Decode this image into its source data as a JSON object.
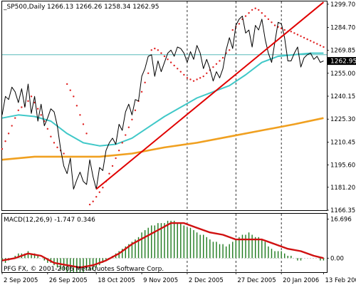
{
  "chart_data": [
    {
      "type": "line",
      "panel": "price",
      "header": {
        "symbol_label": "_SP500,Daily",
        "ohlc_label": "1266.13 1266.26 1258.34 1262.95"
      },
      "ylim": [
        1166.35,
        1301.5
      ],
      "y_ticks": [
        "1299.70",
        "1284.70",
        "1269.85",
        "1255.00",
        "1240.15",
        "1225.30",
        "1210.45",
        "1195.60",
        "1181.20",
        "1166.35"
      ],
      "current_price_label": "1262.95",
      "colors": {
        "price": "#000000",
        "ma_fast": "#40c8c8",
        "ma_slow": "#f0a020",
        "sar": "#e02020",
        "trendline": "#e00000",
        "price_marker_bg": "#000000",
        "price_marker_fg": "#ffffff",
        "horizontal_line": "#40b0b0",
        "separators": "#000000"
      },
      "x_range": [
        0,
        100
      ],
      "series": [
        {
          "role": "price",
          "x": [
            0,
            1,
            2,
            3,
            4,
            5,
            6,
            7,
            8,
            9,
            10,
            11,
            12,
            13,
            14,
            15,
            16,
            17,
            18,
            19,
            20,
            21,
            22,
            23,
            24,
            25,
            26,
            27,
            28,
            29,
            30,
            31,
            32,
            33,
            34,
            35,
            36,
            37,
            38,
            39,
            40,
            41,
            42,
            43,
            44,
            45,
            46,
            47,
            48,
            49,
            50,
            51,
            52,
            53,
            54,
            55,
            56,
            57,
            58,
            59,
            60,
            61,
            62,
            63,
            64,
            65,
            66,
            67,
            68,
            69,
            70,
            71,
            72,
            73,
            74,
            75,
            76,
            77,
            78,
            79,
            80,
            81,
            82,
            83,
            84,
            85,
            86,
            87,
            88,
            89,
            90,
            91,
            92,
            93,
            94,
            95,
            96,
            97,
            98,
            99
          ],
          "y": [
            1228,
            1240,
            1238,
            1246,
            1243,
            1236,
            1245,
            1233,
            1248,
            1229,
            1240,
            1224,
            1235,
            1221,
            1226,
            1232,
            1230,
            1221,
            1206,
            1195,
            1190,
            1200,
            1180,
            1186,
            1191,
            1185,
            1183,
            1199,
            1188,
            1180,
            1194,
            1192,
            1205,
            1210,
            1213,
            1209,
            1222,
            1218,
            1230,
            1235,
            1228,
            1238,
            1237,
            1253,
            1258,
            1266,
            1267,
            1253,
            1263,
            1256,
            1262,
            1268,
            1270,
            1266,
            1272,
            1271,
            1268,
            1262,
            1269,
            1264,
            1273,
            1268,
            1258,
            1264,
            1258,
            1250,
            1256,
            1252,
            1258,
            1270,
            1278,
            1271,
            1286,
            1290,
            1292,
            1281,
            1283,
            1272,
            1286,
            1283,
            1290,
            1277,
            1268,
            1262,
            1275,
            1288,
            1287,
            1278,
            1263,
            1263,
            1268,
            1272,
            1259,
            1265,
            1267,
            1268,
            1264,
            1266,
            1262,
            1263
          ]
        },
        {
          "role": "ma_fast",
          "x": [
            0,
            5,
            10,
            15,
            20,
            25,
            30,
            35,
            40,
            45,
            50,
            55,
            60,
            65,
            70,
            75,
            80,
            85,
            90,
            95,
            99
          ],
          "y": [
            1226,
            1228,
            1227,
            1224,
            1216,
            1210,
            1208,
            1209,
            1213,
            1220,
            1227,
            1233,
            1239,
            1243,
            1247,
            1254,
            1262,
            1266,
            1267,
            1268,
            1268
          ]
        },
        {
          "role": "ma_slow",
          "x": [
            0,
            10,
            20,
            30,
            40,
            50,
            60,
            70,
            80,
            90,
            99
          ],
          "y": [
            1199,
            1201,
            1201,
            1201,
            1203,
            1207,
            1210,
            1214,
            1218,
            1222,
            1226
          ]
        },
        {
          "role": "sar",
          "x": [
            0,
            1,
            2,
            3,
            4,
            5,
            6,
            7,
            8,
            9,
            10,
            11,
            12,
            13,
            14,
            15,
            16,
            17,
            18,
            19,
            20,
            21,
            22,
            23,
            24,
            25,
            26,
            27,
            28,
            29,
            30,
            31,
            32,
            33,
            34,
            35,
            36,
            37,
            38,
            39,
            40,
            41,
            42,
            43,
            44,
            45,
            46,
            47,
            48,
            49,
            50,
            51,
            52,
            53,
            54,
            55,
            56,
            57,
            58,
            59,
            60,
            61,
            62,
            63,
            64,
            65,
            66,
            67,
            68,
            69,
            70,
            71,
            72,
            73,
            74,
            75,
            76,
            77,
            78,
            79,
            80,
            81,
            82,
            83,
            84,
            85,
            86,
            87,
            88,
            89,
            90,
            91,
            92,
            93,
            94,
            95,
            96,
            97,
            98,
            99
          ],
          "y": [
            1206,
            1211,
            1216,
            1221,
            1226,
            1231,
            1233,
            1234,
            1237,
            1240,
            1236,
            1232,
            1228,
            1224,
            1219,
            1214,
            1210,
            1207,
            1205,
            1203,
            1248,
            1244,
            1240,
            1234,
            1228,
            1222,
            1216,
            1170,
            1172,
            1175,
            1178,
            1181,
            1185,
            1190,
            1195,
            1200,
            1205,
            1210,
            1215,
            1220,
            1225,
            1231,
            1237,
            1243,
            1249,
            1255,
            1270,
            1271,
            1270,
            1268,
            1266,
            1264,
            1262,
            1260,
            1258,
            1256,
            1254,
            1252,
            1251,
            1250,
            1251,
            1252,
            1253,
            1255,
            1257,
            1259,
            1261,
            1263,
            1265,
            1268,
            1270,
            1283,
            1285,
            1287,
            1290,
            1292,
            1294,
            1296,
            1297,
            1296,
            1294,
            1292,
            1290,
            1288,
            1286,
            1285,
            1284,
            1283,
            1282,
            1282,
            1281,
            1280,
            1279,
            1278,
            1277,
            1276,
            1275,
            1274,
            1273,
            1272
          ]
        },
        {
          "role": "trendline",
          "x": [
            29,
            99
          ],
          "y": [
            1180,
            1301
          ]
        },
        {
          "role": "horizontal_line",
          "y": 1267
        }
      ]
    },
    {
      "type": "bar",
      "panel": "indicator",
      "header": {
        "label": "MACD(12,26,9) -1.747 0.346"
      },
      "ylim": [
        -6,
        19
      ],
      "y_ticks": [
        "16.696",
        "0.00"
      ],
      "colors": {
        "histogram": "#1e7a1e",
        "signal": "#d01010"
      },
      "series": [
        {
          "role": "histogram",
          "x": [
            0,
            1,
            2,
            3,
            4,
            5,
            6,
            7,
            8,
            9,
            10,
            11,
            12,
            13,
            14,
            15,
            16,
            17,
            18,
            19,
            20,
            21,
            22,
            23,
            24,
            25,
            26,
            27,
            28,
            29,
            30,
            31,
            32,
            33,
            34,
            35,
            36,
            37,
            38,
            39,
            40,
            41,
            42,
            43,
            44,
            45,
            46,
            47,
            48,
            49,
            50,
            51,
            52,
            53,
            54,
            55,
            56,
            57,
            58,
            59,
            60,
            61,
            62,
            63,
            64,
            65,
            66,
            67,
            68,
            69,
            70,
            71,
            72,
            73,
            74,
            75,
            76,
            77,
            78,
            79,
            80,
            81,
            82,
            83,
            84,
            85,
            86,
            87,
            88,
            89,
            90,
            91,
            92,
            93,
            94,
            95,
            96,
            97,
            98,
            99
          ],
          "y": [
            -1,
            -2,
            -1,
            0,
            1,
            2,
            2,
            2,
            3,
            2,
            2,
            1,
            0,
            -1,
            -2,
            -2,
            -3,
            -4,
            -5,
            -5,
            -6,
            -6,
            -6,
            -6,
            -6,
            -6,
            -5,
            -5,
            -5,
            -4,
            -3,
            -2,
            -1,
            0,
            1,
            2,
            3,
            4,
            5,
            6,
            7,
            8,
            9,
            11,
            12,
            13,
            14,
            14,
            15,
            15,
            15,
            16,
            16,
            16,
            15,
            15,
            14,
            13,
            13,
            12,
            11,
            10,
            10,
            9,
            8,
            7,
            7,
            6,
            6,
            5,
            6,
            7,
            8,
            9,
            10,
            10,
            11,
            10,
            9,
            9,
            8,
            7,
            5,
            4,
            3,
            3,
            3,
            2,
            1,
            1,
            0,
            -1,
            -1,
            0,
            0,
            0,
            0,
            0,
            -1,
            -1
          ]
        },
        {
          "role": "signal",
          "x": [
            0,
            4,
            8,
            12,
            16,
            20,
            24,
            28,
            32,
            36,
            40,
            44,
            48,
            52,
            56,
            60,
            64,
            68,
            72,
            76,
            80,
            84,
            88,
            92,
            96,
            99
          ],
          "y": [
            -1,
            0,
            2,
            1,
            -2,
            -3,
            -4,
            -3,
            -1,
            2,
            6,
            9,
            12,
            15,
            15,
            13,
            11,
            10,
            8,
            8,
            8,
            6,
            4,
            3,
            1,
            0
          ]
        }
      ]
    }
  ],
  "x_axis": {
    "tick_labels": [
      "2 Sep 2005",
      "26 Sep 2005",
      "18 Oct 2005",
      "9 Nov 2005",
      "2 Dec 2005",
      "27 Dec 2005",
      "20 Jan 2006",
      "13 Feb 2006"
    ],
    "tick_positions": [
      0,
      14,
      29,
      43,
      57,
      72,
      86,
      99
    ],
    "separators": [
      57,
      72,
      86
    ]
  },
  "copyright": "PFG FX, © 2001-2006 MetaQuotes Software Corp."
}
